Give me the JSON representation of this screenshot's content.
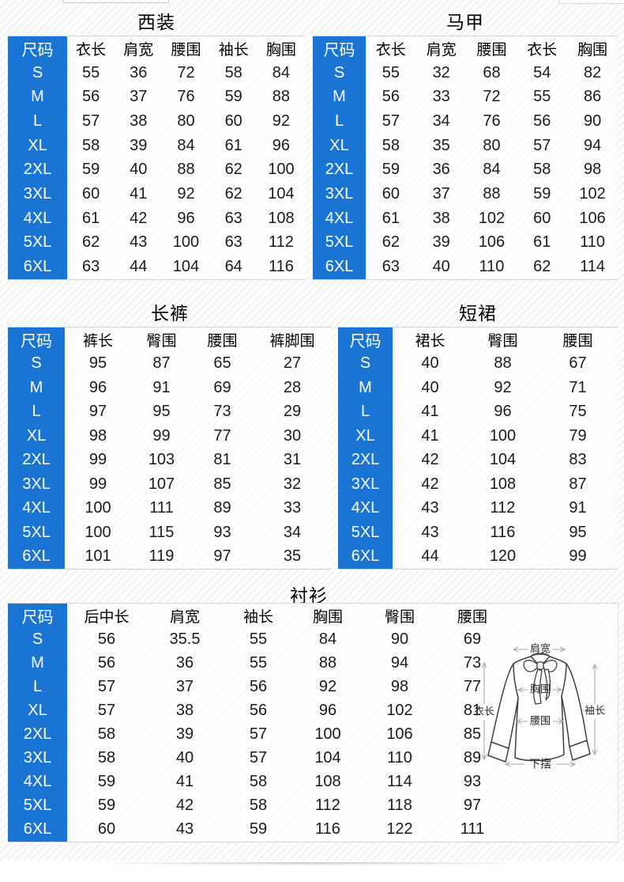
{
  "accent_blue": "#1a74d3",
  "tables": [
    {
      "id": "suit",
      "title": "西装",
      "headers": [
        "尺码",
        "衣长",
        "肩宽",
        "腰围",
        "袖长",
        "胸围"
      ],
      "rows": [
        [
          "S",
          55,
          36,
          72,
          58,
          84
        ],
        [
          "M",
          56,
          37,
          76,
          59,
          88
        ],
        [
          "L",
          57,
          38,
          80,
          60,
          92
        ],
        [
          "XL",
          58,
          39,
          84,
          61,
          96
        ],
        [
          "2XL",
          59,
          40,
          88,
          62,
          100
        ],
        [
          "3XL",
          60,
          41,
          92,
          62,
          104
        ],
        [
          "4XL",
          61,
          42,
          96,
          63,
          108
        ],
        [
          "5XL",
          62,
          43,
          100,
          63,
          112
        ],
        [
          "6XL",
          63,
          44,
          104,
          64,
          116
        ]
      ]
    },
    {
      "id": "vest",
      "title": "马甲",
      "headers": [
        "尺码",
        "衣长",
        "肩宽",
        "腰围",
        "衣长",
        "胸围"
      ],
      "rows": [
        [
          "S",
          55,
          32,
          68,
          54,
          82
        ],
        [
          "M",
          56,
          33,
          72,
          55,
          86
        ],
        [
          "L",
          57,
          34,
          76,
          56,
          90
        ],
        [
          "XL",
          58,
          35,
          80,
          57,
          94
        ],
        [
          "2XL",
          59,
          36,
          84,
          58,
          98
        ],
        [
          "3XL",
          60,
          37,
          88,
          59,
          102
        ],
        [
          "4XL",
          61,
          38,
          102,
          60,
          106
        ],
        [
          "5XL",
          62,
          39,
          106,
          61,
          110
        ],
        [
          "6XL",
          63,
          40,
          110,
          62,
          114
        ]
      ]
    },
    {
      "id": "pants",
      "title": "长裤",
      "headers": [
        "尺码",
        "裤长",
        "臀围",
        "腰围",
        "裤脚围"
      ],
      "rows": [
        [
          "S",
          95,
          87,
          65,
          27
        ],
        [
          "M",
          96,
          91,
          69,
          28
        ],
        [
          "L",
          97,
          95,
          73,
          29
        ],
        [
          "XL",
          98,
          99,
          77,
          30
        ],
        [
          "2XL",
          99,
          103,
          81,
          31
        ],
        [
          "3XL",
          99,
          107,
          85,
          32
        ],
        [
          "4XL",
          100,
          111,
          89,
          33
        ],
        [
          "5XL",
          100,
          115,
          93,
          34
        ],
        [
          "6XL",
          101,
          119,
          97,
          35
        ]
      ]
    },
    {
      "id": "skirt",
      "title": "短裙",
      "headers": [
        "尺码",
        "裙长",
        "臀围",
        "腰围"
      ],
      "rows": [
        [
          "S",
          40,
          88,
          67
        ],
        [
          "M",
          40,
          92,
          71
        ],
        [
          "L",
          41,
          96,
          75
        ],
        [
          "XL",
          41,
          100,
          79
        ],
        [
          "2XL",
          42,
          104,
          83
        ],
        [
          "3XL",
          42,
          108,
          87
        ],
        [
          "4XL",
          43,
          112,
          91
        ],
        [
          "5XL",
          43,
          116,
          95
        ],
        [
          "6XL",
          44,
          120,
          99
        ]
      ]
    },
    {
      "id": "shirt",
      "title": "衬衫",
      "headers": [
        "尺码",
        "后中长",
        "肩宽",
        "袖长",
        "胸围",
        "臀围",
        "腰围"
      ],
      "rows": [
        [
          "S",
          56,
          35.5,
          55,
          84,
          90,
          69
        ],
        [
          "M",
          56,
          36,
          55,
          88,
          94,
          73
        ],
        [
          "L",
          57,
          37,
          56,
          92,
          98,
          77
        ],
        [
          "XL",
          57,
          38,
          56,
          96,
          102,
          81
        ],
        [
          "2XL",
          58,
          39,
          57,
          100,
          106,
          85
        ],
        [
          "3XL",
          58,
          40,
          57,
          104,
          110,
          89
        ],
        [
          "4XL",
          59,
          41,
          58,
          108,
          114,
          93
        ],
        [
          "5XL",
          59,
          42,
          58,
          112,
          118,
          97
        ],
        [
          "6XL",
          60,
          43,
          59,
          116,
          122,
          111
        ]
      ]
    }
  ],
  "diagram": {
    "labels": {
      "shoulder": "肩宽",
      "length": "衣长",
      "sleeve": "袖长",
      "bust": "胸围",
      "waist": "腰围",
      "hem": "下摆"
    }
  }
}
